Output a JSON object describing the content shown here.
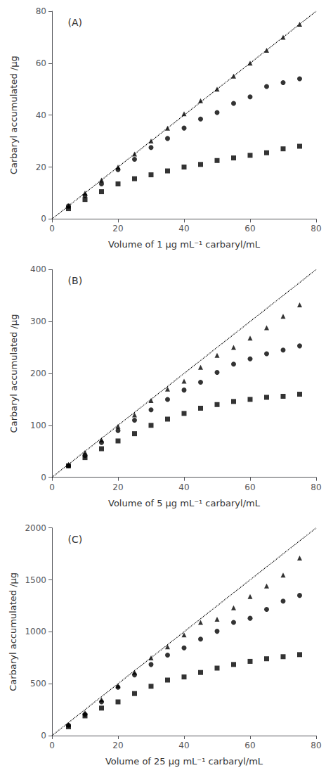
{
  "chart_data": [
    {
      "type": "scatter",
      "annotations": [
        "(A)"
      ],
      "xlabel": "Volume of 1 μg mL⁻¹ carbaryl/mL",
      "ylabel": "Carbaryl accumulated /μg",
      "xlim": [
        0,
        80
      ],
      "xticks": [
        0,
        20,
        40,
        60,
        80
      ],
      "ylim": [
        0,
        80
      ],
      "yticks": [
        0,
        20,
        40,
        60,
        80
      ],
      "grid": false,
      "x": [
        5,
        10,
        15,
        20,
        25,
        30,
        35,
        40,
        45,
        50,
        55,
        60,
        65,
        70,
        75
      ],
      "series": [
        {
          "type": "line",
          "line_style": "dotted",
          "color": "black",
          "x": [
            0,
            80
          ],
          "values": [
            0,
            80
          ]
        },
        {
          "type": "scatter",
          "marker": "triangle",
          "color": "black",
          "values": [
            5.0,
            10.0,
            15.0,
            20.0,
            25.0,
            30.0,
            35.0,
            40.5,
            45.5,
            50.0,
            55.0,
            60.0,
            65.0,
            70.0,
            75.0
          ]
        },
        {
          "type": "scatter",
          "marker": "circle",
          "color": "black",
          "values": [
            5.0,
            9.0,
            13.5,
            19.0,
            23.0,
            27.5,
            31.0,
            35.0,
            38.5,
            41.0,
            44.5,
            47.0,
            51.0,
            52.5,
            54.0
          ]
        },
        {
          "type": "scatter",
          "marker": "square",
          "color": "black",
          "values": [
            4.0,
            7.5,
            10.5,
            13.5,
            15.5,
            17.0,
            18.5,
            20.0,
            21.0,
            22.5,
            23.5,
            24.5,
            25.5,
            27.0,
            28.0
          ]
        }
      ]
    },
    {
      "type": "scatter",
      "annotations": [
        "(B)"
      ],
      "xlabel": "Volume of 5 μg mL⁻¹ carbaryl/mL",
      "ylabel": "Carbaryl accumulated /μg",
      "xlim": [
        0,
        80
      ],
      "xticks": [
        0,
        20,
        40,
        60,
        80
      ],
      "ylim": [
        0,
        400
      ],
      "yticks": [
        0,
        100,
        200,
        300,
        400
      ],
      "grid": false,
      "x": [
        5,
        10,
        15,
        20,
        25,
        30,
        35,
        40,
        45,
        50,
        55,
        60,
        65,
        70,
        75
      ],
      "series": [
        {
          "type": "line",
          "line_style": "dotted",
          "color": "black",
          "x": [
            0,
            80
          ],
          "values": [
            0,
            400
          ]
        },
        {
          "type": "scatter",
          "marker": "triangle",
          "color": "black",
          "values": [
            25,
            48,
            72,
            98,
            120,
            148,
            170,
            185,
            212,
            235,
            250,
            268,
            288,
            310,
            332
          ]
        },
        {
          "type": "scatter",
          "marker": "circle",
          "color": "black",
          "values": [
            22,
            42,
            67,
            90,
            110,
            130,
            150,
            168,
            183,
            202,
            218,
            228,
            238,
            245,
            253
          ]
        },
        {
          "type": "scatter",
          "marker": "square",
          "color": "black",
          "values": [
            22,
            38,
            55,
            70,
            84,
            100,
            112,
            123,
            133,
            140,
            146,
            150,
            154,
            156,
            160
          ]
        }
      ]
    },
    {
      "type": "scatter",
      "annotations": [
        "(C)"
      ],
      "xlabel": "Volume of 25 μg mL⁻¹ carbaryl/mL",
      "ylabel": "Carbaryl accumulated /μg",
      "xlim": [
        0,
        80
      ],
      "xticks": [
        0,
        20,
        40,
        60,
        80
      ],
      "ylim": [
        0,
        2000
      ],
      "yticks": [
        0,
        500,
        1000,
        1500,
        2000
      ],
      "grid": false,
      "x": [
        5,
        10,
        15,
        20,
        25,
        30,
        35,
        40,
        45,
        50,
        55,
        60,
        65,
        70,
        75
      ],
      "series": [
        {
          "type": "line",
          "line_style": "dotted",
          "color": "black",
          "x": [
            0,
            80
          ],
          "values": [
            0,
            2000
          ]
        },
        {
          "type": "scatter",
          "marker": "triangle",
          "color": "black",
          "values": [
            105,
            220,
            345,
            480,
            610,
            748,
            855,
            970,
            1090,
            1120,
            1230,
            1340,
            1440,
            1545,
            1710
          ]
        },
        {
          "type": "scatter",
          "marker": "circle",
          "color": "black",
          "values": [
            100,
            205,
            325,
            465,
            585,
            685,
            775,
            845,
            930,
            1005,
            1090,
            1130,
            1215,
            1295,
            1350
          ]
        },
        {
          "type": "scatter",
          "marker": "square",
          "color": "black",
          "values": [
            85,
            190,
            265,
            325,
            405,
            475,
            535,
            565,
            608,
            650,
            685,
            715,
            740,
            760,
            780
          ]
        }
      ]
    }
  ]
}
